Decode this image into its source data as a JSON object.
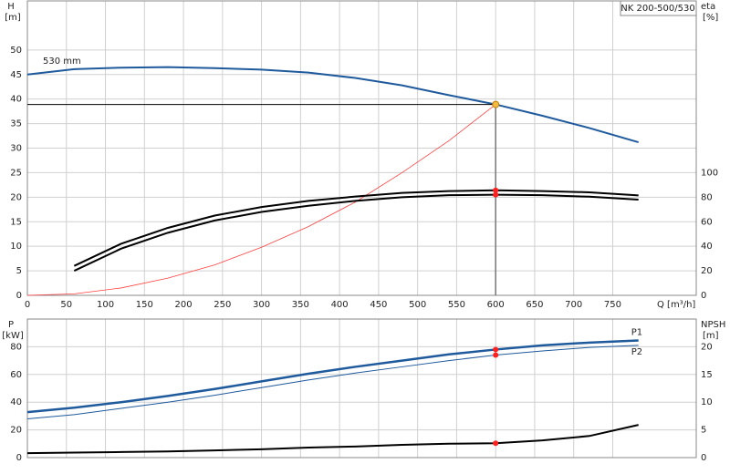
{
  "chart_data": [
    {
      "type": "line",
      "title": "NK 200-500/530",
      "ylabel": "H",
      "ylabel_unit": "[m]",
      "y2label": "eta",
      "y2label_unit": "[%]",
      "xlabel": "Q [m³/h]",
      "annotations": [
        {
          "text": "530 mm"
        }
      ],
      "xlim": [
        0,
        857
      ],
      "xticks": [
        0,
        50,
        100,
        150,
        200,
        250,
        300,
        350,
        400,
        450,
        500,
        550,
        600,
        650,
        700,
        750
      ],
      "ylim": [
        0,
        60
      ],
      "yticks": [
        0,
        5,
        10,
        15,
        20,
        25,
        30,
        35,
        40,
        45,
        50
      ],
      "y2lim": [
        0,
        240
      ],
      "y2ticks": [
        0,
        20,
        40,
        60,
        80,
        100
      ],
      "grid": true,
      "series": [
        {
          "color": "#1f5a9c",
          "width": 2,
          "x": [
            0,
            60,
            120,
            180,
            240,
            300,
            360,
            420,
            480,
            540,
            600,
            660,
            720,
            783
          ],
          "values": [
            45,
            46.1,
            46.4,
            46.5,
            46.3,
            46,
            45.4,
            44.3,
            42.8,
            40.8,
            38.9,
            36.6,
            34.1,
            31.2
          ]
        },
        {
          "color": "#ff4040",
          "width": 0.8,
          "x": [
            0,
            60,
            120,
            180,
            240,
            300,
            360,
            420,
            480,
            540,
            600
          ],
          "values": [
            0,
            0.3,
            1.5,
            3.5,
            6.2,
            9.8,
            14,
            19,
            25,
            31.5,
            38.9
          ]
        },
        {
          "color": "#000000",
          "width": 2,
          "axis": "y2",
          "x": [
            60,
            120,
            180,
            240,
            300,
            360,
            420,
            480,
            540,
            600,
            660,
            720,
            783
          ],
          "values": [
            24,
            42,
            55,
            65,
            72,
            77,
            80.5,
            83.5,
            85,
            85.6,
            85,
            84,
            81.5
          ]
        },
        {
          "color": "#000000",
          "width": 2,
          "axis": "y2",
          "x": [
            60,
            120,
            180,
            240,
            300,
            360,
            420,
            480,
            540,
            600,
            660,
            720,
            783
          ],
          "values": [
            20,
            38,
            51,
            61,
            68,
            73,
            77,
            80,
            81.6,
            82,
            81.6,
            80.4,
            78
          ]
        }
      ],
      "markers": [
        {
          "x": 600,
          "y": 38.9,
          "color": "#f5b942",
          "guide": true
        },
        {
          "x": 600,
          "y": 85.6,
          "color": "#ff2020",
          "axis": "y2"
        },
        {
          "x": 600,
          "y": 82,
          "color": "#ff2020",
          "axis": "y2"
        }
      ]
    },
    {
      "type": "line",
      "ylabel": "P",
      "ylabel_unit": "[kW]",
      "y2label": "NPSH",
      "y2label_unit": "[m]",
      "xlim": [
        0,
        857
      ],
      "ylim": [
        0,
        100
      ],
      "yticks": [
        0,
        20,
        40,
        60,
        80
      ],
      "y2lim": [
        0,
        25
      ],
      "y2ticks": [
        0,
        5,
        10,
        15,
        20
      ],
      "grid": true,
      "series": [
        {
          "name": "P1",
          "color": "#1f5a9c",
          "width": 2.5,
          "x": [
            0,
            60,
            120,
            180,
            240,
            300,
            360,
            420,
            480,
            540,
            600,
            660,
            720,
            783
          ],
          "values": [
            32.8,
            36,
            40,
            44.5,
            49.5,
            55,
            60.5,
            65.5,
            70,
            74.5,
            78,
            81,
            83,
            84.5
          ]
        },
        {
          "name": "P2",
          "color": "#1f5a9c",
          "width": 1,
          "x": [
            0,
            60,
            120,
            180,
            240,
            300,
            360,
            420,
            480,
            540,
            600,
            660,
            720,
            783
          ],
          "values": [
            28,
            31,
            35.5,
            40,
            45,
            50.5,
            56,
            61,
            65.5,
            70,
            74,
            77,
            79.5,
            81
          ]
        },
        {
          "color": "#000000",
          "width": 2,
          "axis": "y2",
          "x": [
            0,
            60,
            120,
            180,
            240,
            300,
            360,
            420,
            480,
            540,
            600,
            660,
            720,
            783
          ],
          "values": [
            0.8,
            0.9,
            1,
            1.1,
            1.3,
            1.5,
            1.8,
            2,
            2.3,
            2.5,
            2.6,
            3.1,
            3.9,
            5.9
          ]
        }
      ],
      "markers": [
        {
          "x": 600,
          "y": 78,
          "color": "#ff2020"
        },
        {
          "x": 600,
          "y": 74,
          "color": "#ff2020"
        },
        {
          "x": 600,
          "y": 2.6,
          "color": "#ff2020",
          "axis": "y2"
        }
      ]
    }
  ]
}
